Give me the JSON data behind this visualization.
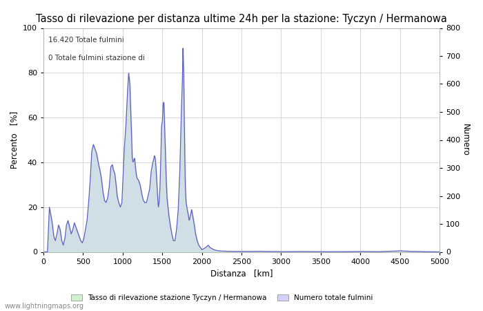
{
  "title": "Tasso di rilevazione per distanza ultime 24h per la stazione: Tyczyn / Hermanowa",
  "xlabel": "Distanza   [km]",
  "ylabel_left": "Percento   [%]",
  "ylabel_right": "Numero",
  "annotation_line1": "16.420 Totale fulmini",
  "annotation_line2": "0 Totale fulmini stazione di",
  "watermark": "www.lightningmaps.org",
  "xlim": [
    0,
    5000
  ],
  "ylim_left": [
    0,
    100
  ],
  "ylim_right": [
    0,
    800
  ],
  "xticks": [
    0,
    500,
    1000,
    1500,
    2000,
    2500,
    3000,
    3500,
    4000,
    4500,
    5000
  ],
  "yticks_left": [
    0,
    20,
    40,
    60,
    80,
    100
  ],
  "yticks_right": [
    0,
    100,
    200,
    300,
    400,
    500,
    600,
    700,
    800
  ],
  "fill_color_detection": "#d0f0d0",
  "fill_color_total": "#d0d0f8",
  "line_color": "#6060c0",
  "background_color": "#ffffff",
  "grid_color": "#c8c8c8",
  "legend_label_1": "Tasso di rilevazione stazione Tyczyn / Hermanowa",
  "legend_label_2": "Numero totale fulmini",
  "title_fontsize": 10.5,
  "axis_fontsize": 8.5,
  "tick_fontsize": 8
}
